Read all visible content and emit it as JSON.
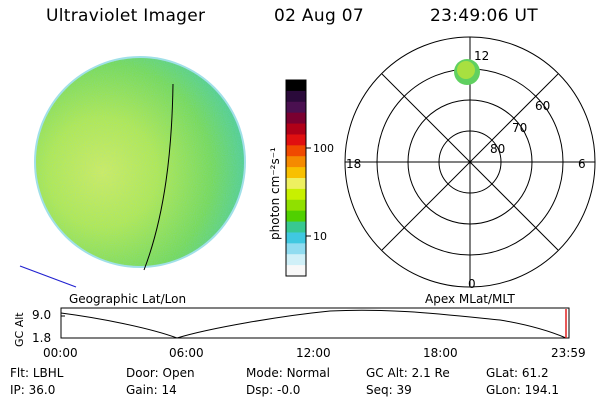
{
  "header": {
    "title": "Ultraviolet Imager",
    "date": "02 Aug 07",
    "time": "23:49:06 UT"
  },
  "colorbar": {
    "label": "photon cm⁻²s⁻¹",
    "ticks": [
      "100",
      "10"
    ],
    "colors": [
      "#000000",
      "#2a0a3a",
      "#4a1050",
      "#7a0030",
      "#b00018",
      "#e01010",
      "#f04a00",
      "#f58a00",
      "#f8c000",
      "#eef060",
      "#c8f000",
      "#90e000",
      "#50d000",
      "#38c890",
      "#40c8e0",
      "#90dcf0",
      "#d0f0f8",
      "#f8f8f8"
    ]
  },
  "globe_label": "Geographic Lat/Lon",
  "polar": {
    "label": "Apex MLat/MLT",
    "mlt_labels": [
      "12",
      "18",
      "6",
      "0"
    ],
    "lat_labels": [
      "60",
      "70",
      "80"
    ]
  },
  "timeline": {
    "ylabel": "GC Alt",
    "ymax": "9.0",
    "ymin": "1.8",
    "xticks": [
      "00:00",
      "06:00",
      "12:00",
      "18:00",
      "23:59"
    ]
  },
  "status": {
    "row1": [
      {
        "label": "Flt:",
        "value": "LBHL"
      },
      {
        "label": "Door:",
        "value": "Open"
      },
      {
        "label": "Mode:",
        "value": "Normal"
      },
      {
        "label": "GC Alt:",
        "value": "2.1 Re"
      },
      {
        "label": "GLat:",
        "value": "61.2"
      }
    ],
    "row2": [
      {
        "label": "IP:",
        "value": "36.0"
      },
      {
        "label": "Gain:",
        "value": "14"
      },
      {
        "label": "Dsp:",
        "value": "-0.0"
      },
      {
        "label": "Seq:",
        "value": "39"
      },
      {
        "label": "GLon:",
        "value": "194.1"
      }
    ]
  }
}
